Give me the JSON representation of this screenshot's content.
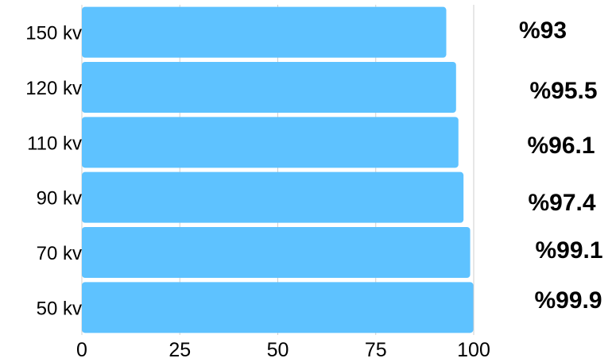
{
  "chart_data": {
    "type": "bar",
    "orientation": "horizontal",
    "title": "",
    "xlabel": "",
    "ylabel": "",
    "categories": [
      "150 kv",
      "120 kv",
      "110 kv",
      "90 kv",
      "70 kv",
      "50 kv"
    ],
    "values": [
      93,
      95.5,
      96.1,
      97.4,
      99.1,
      99.9
    ],
    "value_labels": [
      "%93",
      "%95.5",
      "%96.1",
      "%97.4",
      "%99.1",
      "%99.9"
    ],
    "xlim": [
      0,
      100
    ],
    "x_ticks": [
      "0",
      "25",
      "50",
      "75",
      "100"
    ],
    "grid": true,
    "bar_color": "#5ec2ff",
    "grid_color": "#cfcfcf"
  }
}
